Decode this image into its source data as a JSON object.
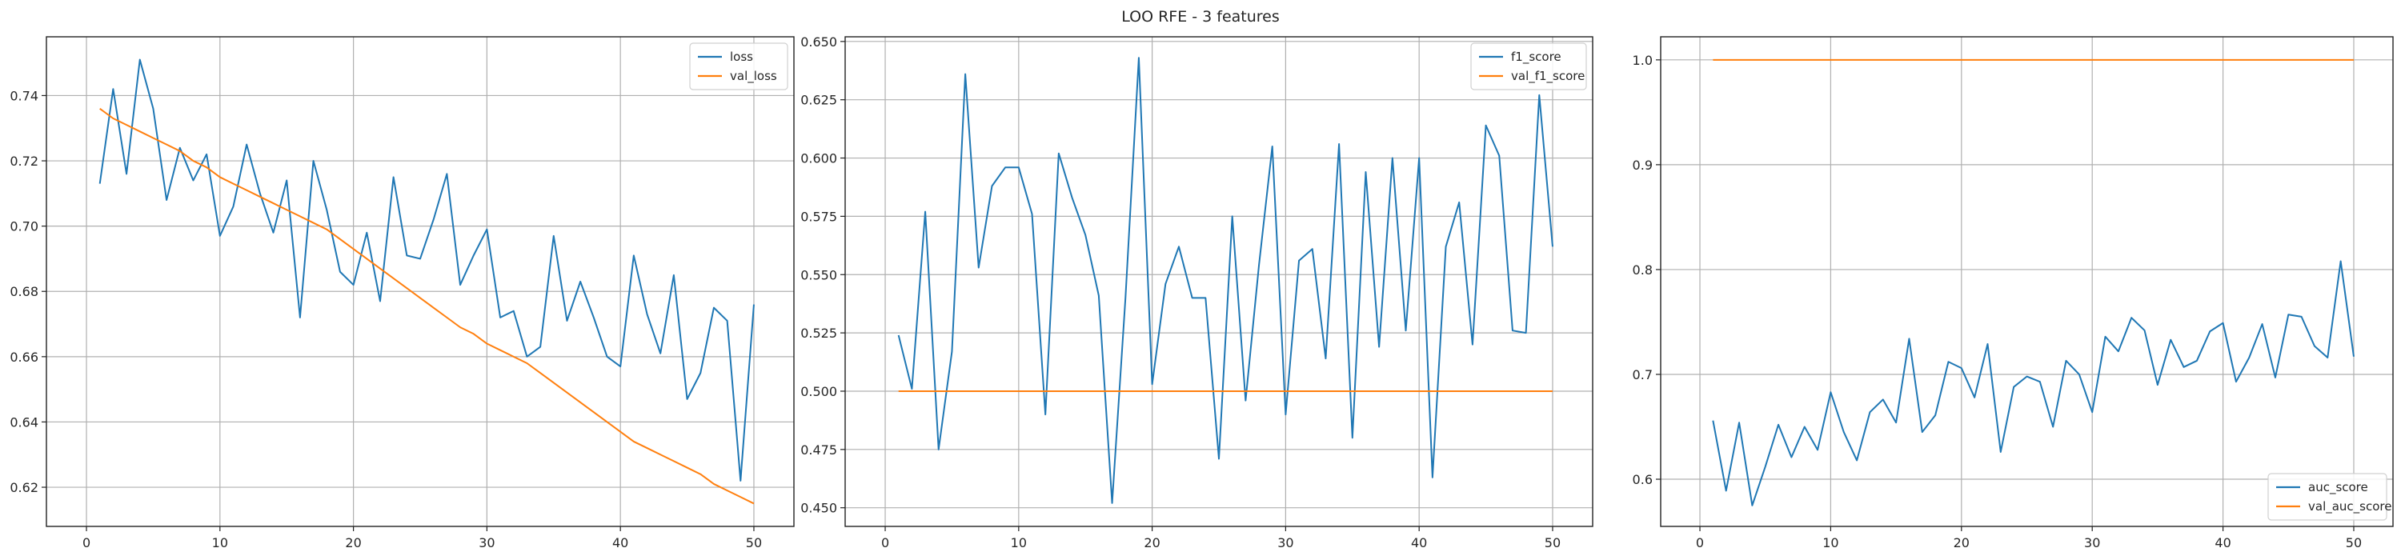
{
  "figure": {
    "title": "LOO RFE - 3 features",
    "colors": {
      "blue": "#1f77b4",
      "orange": "#ff7f0e"
    }
  },
  "chart_data": [
    {
      "type": "line",
      "x": [
        1,
        2,
        3,
        4,
        5,
        6,
        7,
        8,
        9,
        10,
        11,
        12,
        13,
        14,
        15,
        16,
        17,
        18,
        19,
        20,
        21,
        22,
        23,
        24,
        25,
        26,
        27,
        28,
        29,
        30,
        31,
        32,
        33,
        34,
        35,
        36,
        37,
        38,
        39,
        40,
        41,
        42,
        43,
        44,
        45,
        46,
        47,
        48,
        49,
        50
      ],
      "xlim": [
        -3,
        53
      ],
      "ylim": [
        0.608,
        0.758
      ],
      "xticks": [
        0,
        10,
        20,
        30,
        40,
        50
      ],
      "xtick_labels": [
        "0",
        "10",
        "20",
        "30",
        "40",
        "50"
      ],
      "yticks": [
        0.62,
        0.64,
        0.66,
        0.68,
        0.7,
        0.72,
        0.74
      ],
      "ytick_labels": [
        "0.62",
        "0.64",
        "0.66",
        "0.68",
        "0.70",
        "0.72",
        "0.74"
      ],
      "grid": true,
      "legend_position": "top-right",
      "series": [
        {
          "name": "loss",
          "color": "#1f77b4",
          "values": [
            0.713,
            0.742,
            0.716,
            0.751,
            0.736,
            0.708,
            0.724,
            0.714,
            0.722,
            0.697,
            0.706,
            0.725,
            0.71,
            0.698,
            0.714,
            0.672,
            0.72,
            0.705,
            0.686,
            0.682,
            0.698,
            0.677,
            0.715,
            0.691,
            0.69,
            0.702,
            0.716,
            0.682,
            0.691,
            0.699,
            0.672,
            0.674,
            0.66,
            0.663,
            0.697,
            0.671,
            0.683,
            0.672,
            0.66,
            0.657,
            0.691,
            0.673,
            0.661,
            0.685,
            0.647,
            0.655,
            0.675,
            0.671,
            0.622,
            0.676
          ]
        },
        {
          "name": "val_loss",
          "color": "#ff7f0e",
          "values": [
            0.736,
            0.733,
            0.731,
            0.729,
            0.727,
            0.725,
            0.723,
            0.72,
            0.718,
            0.715,
            0.713,
            0.711,
            0.709,
            0.707,
            0.705,
            0.703,
            0.701,
            0.699,
            0.696,
            0.693,
            0.69,
            0.687,
            0.684,
            0.681,
            0.678,
            0.675,
            0.672,
            0.669,
            0.667,
            0.664,
            0.662,
            0.66,
            0.658,
            0.655,
            0.652,
            0.649,
            0.646,
            0.643,
            0.64,
            0.637,
            0.634,
            0.632,
            0.63,
            0.628,
            0.626,
            0.624,
            0.621,
            0.619,
            0.617,
            0.615
          ]
        }
      ]
    },
    {
      "type": "line",
      "x": [
        1,
        2,
        3,
        4,
        5,
        6,
        7,
        8,
        9,
        10,
        11,
        12,
        13,
        14,
        15,
        16,
        17,
        18,
        19,
        20,
        21,
        22,
        23,
        24,
        25,
        26,
        27,
        28,
        29,
        30,
        31,
        32,
        33,
        34,
        35,
        36,
        37,
        38,
        39,
        40,
        41,
        42,
        43,
        44,
        45,
        46,
        47,
        48,
        49,
        50
      ],
      "xlim": [
        -3,
        53
      ],
      "ylim": [
        0.442,
        0.652
      ],
      "xticks": [
        0,
        10,
        20,
        30,
        40,
        50
      ],
      "xtick_labels": [
        "0",
        "10",
        "20",
        "30",
        "40",
        "50"
      ],
      "yticks": [
        0.45,
        0.475,
        0.5,
        0.525,
        0.55,
        0.575,
        0.6,
        0.625,
        0.65
      ],
      "ytick_labels": [
        "0.450",
        "0.475",
        "0.500",
        "0.525",
        "0.550",
        "0.575",
        "0.600",
        "0.625",
        "0.650"
      ],
      "grid": true,
      "legend_position": "top-right",
      "series": [
        {
          "name": "f1_score",
          "color": "#1f77b4",
          "values": [
            0.524,
            0.501,
            0.577,
            0.475,
            0.517,
            0.636,
            0.553,
            0.588,
            0.596,
            0.596,
            0.576,
            0.49,
            0.602,
            0.583,
            0.567,
            0.541,
            0.452,
            0.54,
            0.643,
            0.503,
            0.546,
            0.562,
            0.54,
            0.54,
            0.471,
            0.575,
            0.496,
            0.554,
            0.605,
            0.49,
            0.556,
            0.561,
            0.514,
            0.606,
            0.48,
            0.594,
            0.519,
            0.6,
            0.526,
            0.6,
            0.463,
            0.562,
            0.581,
            0.52,
            0.614,
            0.601,
            0.526,
            0.525,
            0.627,
            0.562
          ]
        },
        {
          "name": "val_f1_score",
          "color": "#ff7f0e",
          "values": [
            0.5,
            0.5,
            0.5,
            0.5,
            0.5,
            0.5,
            0.5,
            0.5,
            0.5,
            0.5,
            0.5,
            0.5,
            0.5,
            0.5,
            0.5,
            0.5,
            0.5,
            0.5,
            0.5,
            0.5,
            0.5,
            0.5,
            0.5,
            0.5,
            0.5,
            0.5,
            0.5,
            0.5,
            0.5,
            0.5,
            0.5,
            0.5,
            0.5,
            0.5,
            0.5,
            0.5,
            0.5,
            0.5,
            0.5,
            0.5,
            0.5,
            0.5,
            0.5,
            0.5,
            0.5,
            0.5,
            0.5,
            0.5,
            0.5,
            0.5
          ]
        }
      ]
    },
    {
      "type": "line",
      "x": [
        1,
        2,
        3,
        4,
        5,
        6,
        7,
        8,
        9,
        10,
        11,
        12,
        13,
        14,
        15,
        16,
        17,
        18,
        19,
        20,
        21,
        22,
        23,
        24,
        25,
        26,
        27,
        28,
        29,
        30,
        31,
        32,
        33,
        34,
        35,
        36,
        37,
        38,
        39,
        40,
        41,
        42,
        43,
        44,
        45,
        46,
        47,
        48,
        49,
        50
      ],
      "xlim": [
        -3,
        53
      ],
      "ylim": [
        0.555,
        1.022
      ],
      "xticks": [
        0,
        10,
        20,
        30,
        40,
        50
      ],
      "xtick_labels": [
        "0",
        "10",
        "20",
        "30",
        "40",
        "50"
      ],
      "yticks": [
        0.6,
        0.7,
        0.8,
        0.9,
        1.0
      ],
      "ytick_labels": [
        "0.6",
        "0.7",
        "0.8",
        "0.9",
        "1.0"
      ],
      "grid": true,
      "legend_position": "bottom-right",
      "series": [
        {
          "name": "auc_score",
          "color": "#1f77b4",
          "values": [
            0.656,
            0.589,
            0.654,
            0.575,
            0.612,
            0.652,
            0.621,
            0.65,
            0.628,
            0.683,
            0.645,
            0.618,
            0.664,
            0.676,
            0.654,
            0.734,
            0.645,
            0.661,
            0.712,
            0.706,
            0.678,
            0.729,
            0.626,
            0.688,
            0.698,
            0.693,
            0.65,
            0.713,
            0.7,
            0.664,
            0.736,
            0.722,
            0.754,
            0.742,
            0.69,
            0.733,
            0.707,
            0.713,
            0.741,
            0.749,
            0.693,
            0.716,
            0.748,
            0.697,
            0.757,
            0.755,
            0.727,
            0.716,
            0.808,
            0.717
          ]
        },
        {
          "name": "val_auc_score",
          "color": "#ff7f0e",
          "values": [
            1.0,
            1.0,
            1.0,
            1.0,
            1.0,
            1.0,
            1.0,
            1.0,
            1.0,
            1.0,
            1.0,
            1.0,
            1.0,
            1.0,
            1.0,
            1.0,
            1.0,
            1.0,
            1.0,
            1.0,
            1.0,
            1.0,
            1.0,
            1.0,
            1.0,
            1.0,
            1.0,
            1.0,
            1.0,
            1.0,
            1.0,
            1.0,
            1.0,
            1.0,
            1.0,
            1.0,
            1.0,
            1.0,
            1.0,
            1.0,
            1.0,
            1.0,
            1.0,
            1.0,
            1.0,
            1.0,
            1.0,
            1.0,
            1.0,
            1.0
          ]
        }
      ]
    }
  ]
}
